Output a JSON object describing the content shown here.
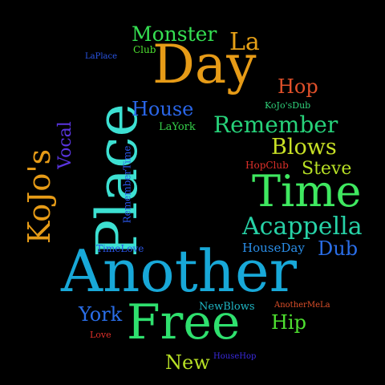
{
  "words": [
    {
      "name": "word-day",
      "text": "Day",
      "color": "#e69b17"
    },
    {
      "name": "word-another",
      "text": "Another",
      "color": "#18a8d8"
    },
    {
      "name": "word-free",
      "text": "Free",
      "color": "#2fe06e"
    },
    {
      "name": "word-place",
      "text": "Place",
      "color": "#3de0d2"
    },
    {
      "name": "word-time",
      "text": "Time",
      "color": "#3fe860"
    },
    {
      "name": "word-kojos",
      "text": "KoJo's",
      "color": "#e69b17"
    },
    {
      "name": "word-remember",
      "text": "Remember",
      "color": "#27d27a"
    },
    {
      "name": "word-acappella",
      "text": "Acappella",
      "color": "#27d2a7"
    },
    {
      "name": "word-monster",
      "text": "Monster",
      "color": "#35df52"
    },
    {
      "name": "word-la",
      "text": "La",
      "color": "#e6a017"
    },
    {
      "name": "word-hop",
      "text": "Hop",
      "color": "#e0502a"
    },
    {
      "name": "word-blows",
      "text": "Blows",
      "color": "#c8e025"
    },
    {
      "name": "word-house",
      "text": "House",
      "color": "#2a66e8"
    },
    {
      "name": "word-steve",
      "text": "Steve",
      "color": "#b7e025"
    },
    {
      "name": "word-vocal",
      "text": "Vocal",
      "color": "#5a35e0"
    },
    {
      "name": "word-dub",
      "text": "Dub",
      "color": "#2a6ee8"
    },
    {
      "name": "word-york",
      "text": "York",
      "color": "#2a6ee8"
    },
    {
      "name": "word-hip",
      "text": "Hip",
      "color": "#4ee030"
    },
    {
      "name": "word-new",
      "text": "New",
      "color": "#b7e025"
    },
    {
      "name": "word-houseday",
      "text": "HouseDay",
      "color": "#2a8ee8"
    },
    {
      "name": "word-newblows",
      "text": "NewBlows",
      "color": "#1fb6c4"
    },
    {
      "name": "word-layork",
      "text": "LaYork",
      "color": "#35d04a"
    },
    {
      "name": "word-club",
      "text": "Club",
      "color": "#4ee030"
    },
    {
      "name": "word-laplace",
      "text": "LaPlace",
      "color": "#2a56e8"
    },
    {
      "name": "word-kojosdub",
      "text": "KoJo'sDub",
      "color": "#2fd079"
    },
    {
      "name": "word-hopclub",
      "text": "HopClub",
      "color": "#e0302a"
    },
    {
      "name": "word-timelove",
      "text": "TimeLove",
      "color": "#2a56e8"
    },
    {
      "name": "word-remembertime",
      "text": "RememberTime",
      "color": "#2a56e8"
    },
    {
      "name": "word-anothermela",
      "text": "AnotherMeLa",
      "color": "#e0502a"
    },
    {
      "name": "word-love",
      "text": "Love",
      "color": "#e0302a"
    },
    {
      "name": "word-househop",
      "text": "HouseHop",
      "color": "#3a2ae0"
    }
  ]
}
